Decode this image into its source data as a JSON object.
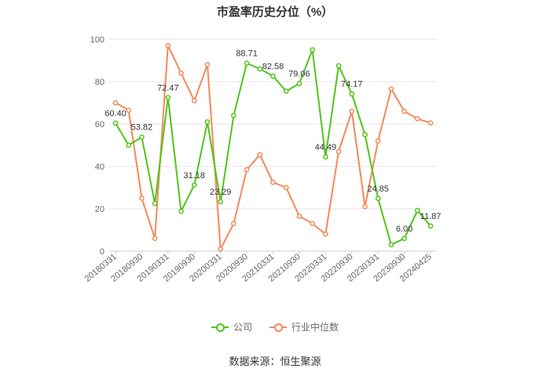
{
  "chart_data": {
    "type": "line",
    "title": "市盈率历史分位（%）",
    "x": [
      "20180331",
      "20180630",
      "20180930",
      "20181231",
      "20190331",
      "20190630",
      "20190930",
      "20191231",
      "20200331",
      "20200630",
      "20200930",
      "20201231",
      "20210331",
      "20210630",
      "20210930",
      "20211231",
      "20220331",
      "20220630",
      "20220930",
      "20221231",
      "20230331",
      "20230630",
      "20230930",
      "20231231",
      "20240425"
    ],
    "x_tick_labels": [
      "20180331",
      "20180930",
      "20190331",
      "20190930",
      "20200331",
      "20200930",
      "20210331",
      "20210930",
      "20220331",
      "20220930",
      "20230331",
      "20230930",
      "20240425"
    ],
    "y_ticks": [
      "0",
      "20",
      "40",
      "60",
      "80",
      "100"
    ],
    "ylim": [
      0,
      100
    ],
    "grid": true,
    "legend_position": "bottom",
    "series": [
      {
        "name": "公司",
        "color": "#52c41a",
        "values": [
          60.4,
          50.0,
          53.82,
          22.5,
          72.47,
          18.8,
          31.18,
          61.0,
          23.29,
          64.0,
          88.71,
          86.0,
          82.58,
          75.5,
          79.06,
          95.0,
          44.49,
          87.5,
          74.17,
          55.0,
          24.85,
          3.0,
          6.0,
          19.2,
          11.87
        ],
        "data_labels": [
          "60.40",
          "",
          "53.82",
          "",
          "72.47",
          "",
          "31.18",
          "",
          "23.29",
          "",
          "88.71",
          "",
          "82.58",
          "",
          "79.06",
          "",
          "44.49",
          "",
          "74.17",
          "",
          "24.85",
          "",
          "6.00",
          "",
          "11.87"
        ]
      },
      {
        "name": "行业中位数",
        "color": "#f5895a",
        "values": [
          70.0,
          66.5,
          25.0,
          6.0,
          97.0,
          84.0,
          71.0,
          88.0,
          1.0,
          13.0,
          38.5,
          45.5,
          32.5,
          30.0,
          16.5,
          13.0,
          8.0,
          47.0,
          66.0,
          21.0,
          52.0,
          76.5,
          66.0,
          62.5,
          60.5
        ]
      }
    ]
  },
  "source_text": "数据来源：恒生聚源"
}
